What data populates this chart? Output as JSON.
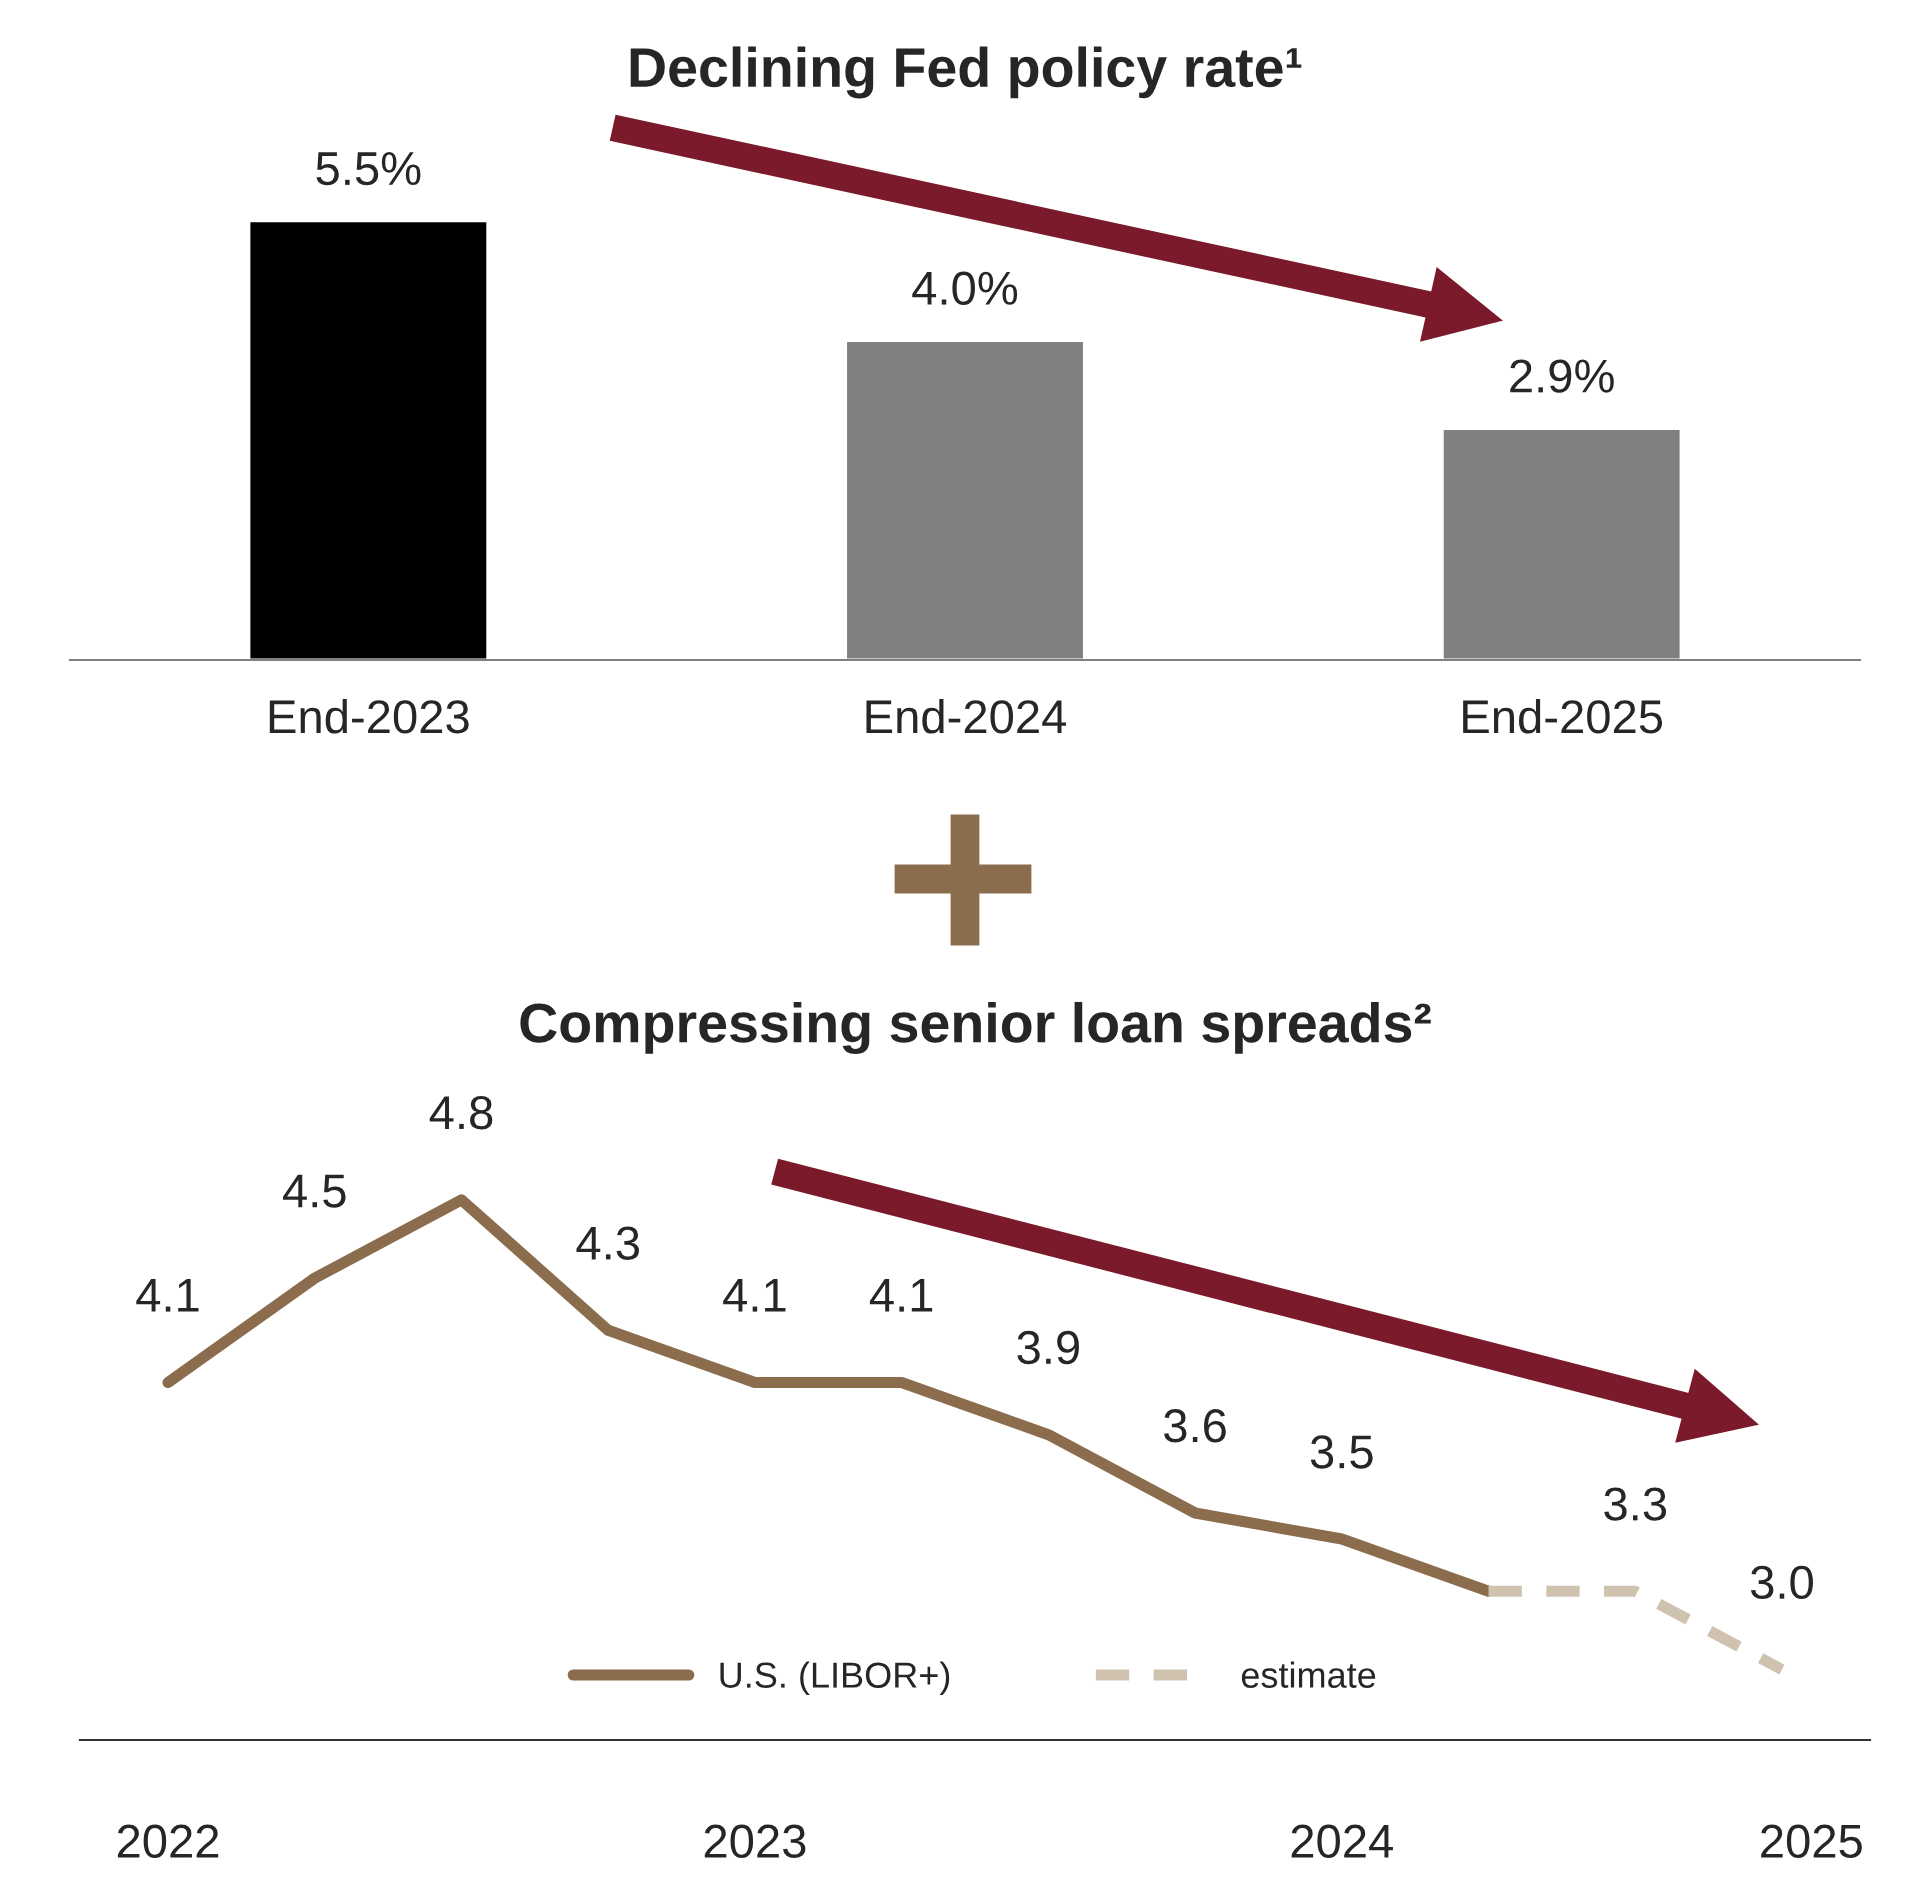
{
  "chart_data": [
    {
      "type": "bar",
      "title": "Declining Fed policy rate¹",
      "categories": [
        "End-2023",
        "End-2024",
        "End-2025"
      ],
      "values": [
        5.5,
        4.0,
        2.9
      ],
      "colors": [
        "#000000",
        "#7f8180",
        "#7f8180"
      ],
      "value_labels": [
        "5.5%",
        "4.0%",
        "2.9%"
      ],
      "grid": false,
      "legend": false
    },
    {
      "type": "line",
      "title": "Compressing senior loan spreads²",
      "xlim": [
        2021.85,
        2024.9
      ],
      "xticks": [
        2022,
        2023,
        2024,
        {
          "value": 2024.8,
          "label": "2025"
        }
      ],
      "grid": false,
      "legend": "bottom",
      "marker": "none",
      "series": [
        {
          "name": "U.S. (LIBOR+)",
          "color": "#8b6d4e",
          "line_style": "solid",
          "x": [
            2022.0,
            2022.25,
            2022.5,
            2022.75,
            2023.0,
            2023.25,
            2023.5,
            2023.75,
            2024.0,
            2024.25
          ],
          "values": [
            4.1,
            4.5,
            4.8,
            4.3,
            4.1,
            4.1,
            3.9,
            3.6,
            3.5,
            3.3
          ],
          "value_labels": [
            "4.1",
            "4.5",
            "4.8",
            "4.3",
            "4.1",
            "4.1",
            "3.9",
            "3.6",
            "3.5",
            null
          ]
        },
        {
          "name": "estimate",
          "color": "#cfc3b0",
          "line_style": "dashed",
          "x": [
            2024.25,
            2024.5,
            2024.75
          ],
          "values": [
            3.3,
            3.3,
            3.0
          ],
          "value_labels": [
            null,
            "3.3",
            "3.0"
          ]
        }
      ]
    }
  ]
}
